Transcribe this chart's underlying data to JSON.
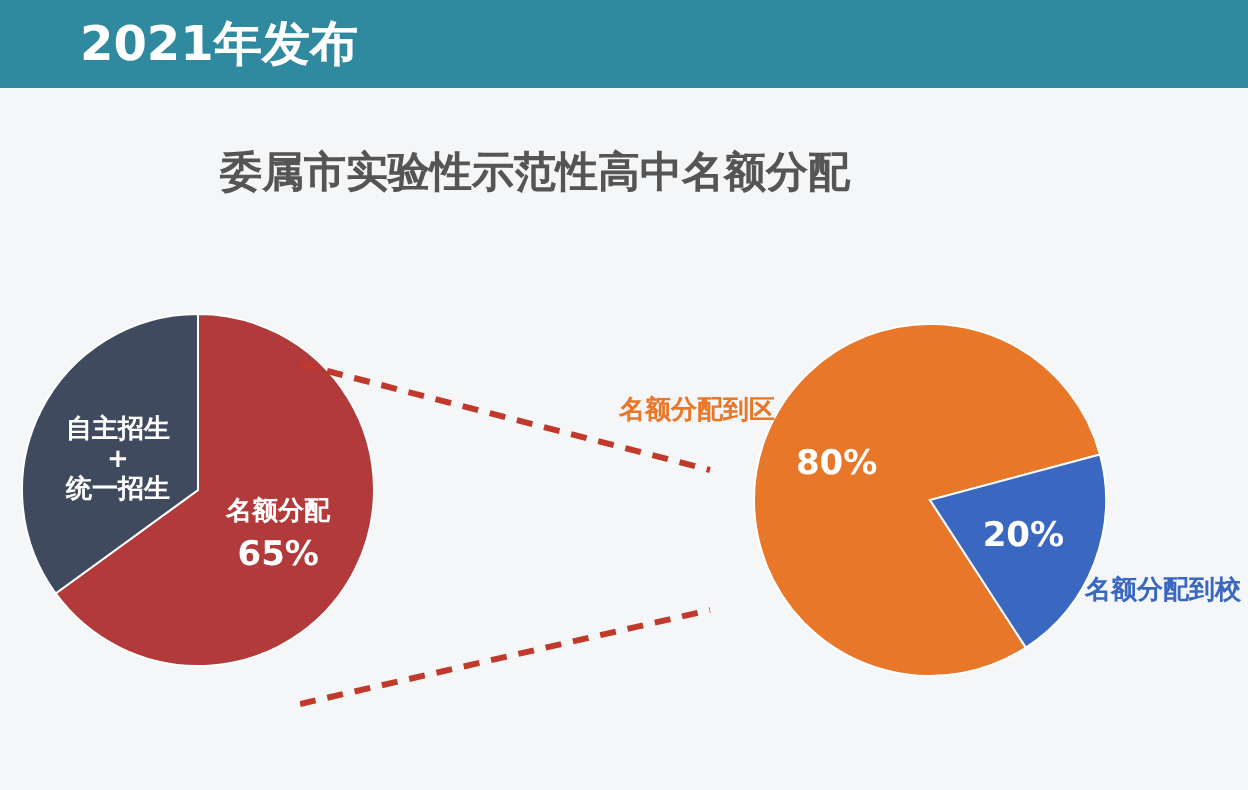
{
  "chart_data": [
    {
      "type": "pie",
      "title": "2021年发布",
      "subtitle": "委属市实验性示范性高中名额分配",
      "categories": [
        "名额分配",
        "自主招生+统一招生"
      ],
      "values": [
        65,
        35
      ],
      "colors": [
        "#b23a3a",
        "#3f4a5e"
      ],
      "value_labels": [
        "65%",
        null
      ],
      "legend": false
    },
    {
      "type": "pie",
      "categories": [
        "名额分配到区",
        "名额分配到校"
      ],
      "values": [
        80,
        20
      ],
      "colors": [
        "#e8772a",
        "#3a68c0"
      ],
      "value_labels": [
        "80%",
        "20%"
      ],
      "legend": false
    }
  ]
}
